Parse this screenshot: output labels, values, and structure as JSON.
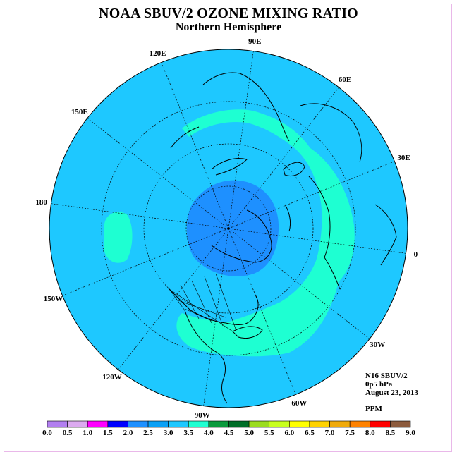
{
  "title": "NOAA SBUV/2 OZONE MIXING RATIO",
  "subtitle": "Northern Hemisphere",
  "info": {
    "instrument": "N16 SBUV/2",
    "level": "0p5 hPa",
    "date": "August 23, 2013",
    "units": "PPM"
  },
  "longitude_labels": [
    "90E",
    "60E",
    "30E",
    "0",
    "30W",
    "60W",
    "90W",
    "120W",
    "150W",
    "180",
    "150E",
    "120E"
  ],
  "colorbar": {
    "ticks": [
      "0.0",
      "0.5",
      "1.0",
      "1.5",
      "2.0",
      "2.5",
      "3.0",
      "3.5",
      "4.0",
      "4.5",
      "5.0",
      "5.5",
      "6.0",
      "6.5",
      "7.0",
      "7.5",
      "8.0",
      "8.5",
      "9.0"
    ],
    "colors": [
      "#b27ff0",
      "#dcaaf0",
      "#ff00ff",
      "#0000ff",
      "#1e90ff",
      "#0aa0f5",
      "#1ec8ff",
      "#1effd2",
      "#0a9a3c",
      "#006e28",
      "#9bdc1e",
      "#c8ff1e",
      "#ffff00",
      "#ffd200",
      "#f0aa0a",
      "#ff8200",
      "#ff0000",
      "#8c5a3c"
    ]
  },
  "colors": {
    "background_field": "#1ec8ff",
    "polar_low": "#1e90ff",
    "band_high": "#1effd2",
    "coast": "#000000"
  }
}
